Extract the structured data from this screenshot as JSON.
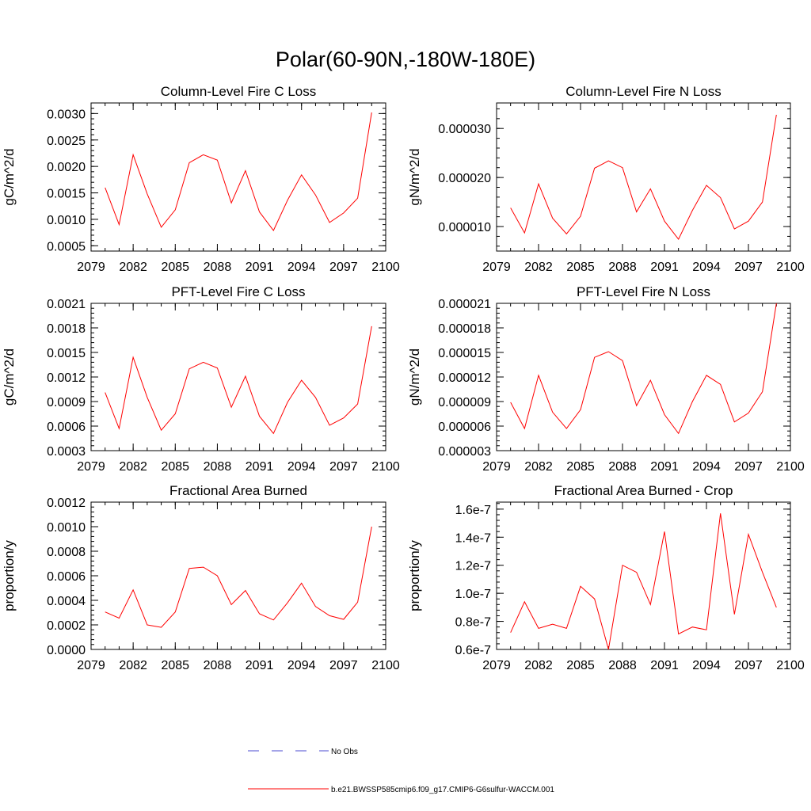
{
  "figure_title": "Polar(60-90N,-180W-180E)",
  "legend": [
    {
      "label": "No Obs",
      "color": "#4b4bd1",
      "style": "dashed"
    },
    {
      "label": "b.e21.BWSSP585cmip6.f09_g17.CMIP6-G6sulfur-WACCM.001",
      "color": "#ff0000",
      "style": "solid"
    }
  ],
  "xticks": [
    "2079",
    "2082",
    "2085",
    "2088",
    "2091",
    "2094",
    "2097",
    "2100"
  ],
  "chart_data": [
    {
      "type": "line",
      "title": "Column-Level Fire C Loss",
      "ylabel": "gC/m^2/d",
      "xlim": [
        2079,
        2100
      ],
      "ylim": [
        0.0004,
        0.0032
      ],
      "yticks": [
        0.0005,
        0.001,
        0.0015,
        0.002,
        0.0025,
        0.003
      ],
      "ytick_labels": [
        "0.0005",
        "0.0010",
        "0.0015",
        "0.0020",
        "0.0025",
        "0.0030"
      ],
      "x": [
        2080,
        2081,
        2082,
        2083,
        2084,
        2085,
        2086,
        2087,
        2088,
        2089,
        2090,
        2091,
        2092,
        2093,
        2094,
        2095,
        2096,
        2097,
        2098,
        2099
      ],
      "series": [
        {
          "values": [
            0.0016,
            0.0009,
            0.00222,
            0.00148,
            0.00085,
            0.00118,
            0.00207,
            0.00222,
            0.00212,
            0.00131,
            0.00192,
            0.00114,
            0.00079,
            0.00136,
            0.00184,
            0.00146,
            0.00094,
            0.00112,
            0.0014,
            0.00302
          ],
          "color": "#ff0000"
        }
      ]
    },
    {
      "type": "line",
      "title": "Column-Level Fire N Loss",
      "ylabel": "gN/m^2/d",
      "xlim": [
        2079,
        2100
      ],
      "ylim": [
        5e-06,
        3.52e-05
      ],
      "yticks": [
        1e-05,
        2e-05,
        3e-05
      ],
      "ytick_labels": [
        "0.000010",
        "0.000020",
        "0.000030"
      ],
      "x": [
        2080,
        2081,
        2082,
        2083,
        2084,
        2085,
        2086,
        2087,
        2088,
        2089,
        2090,
        2091,
        2092,
        2093,
        2094,
        2095,
        2096,
        2097,
        2098,
        2099
      ],
      "series": [
        {
          "values": [
            1.38e-05,
            8.7e-06,
            1.87e-05,
            1.17e-05,
            8.5e-06,
            1.21e-05,
            2.19e-05,
            2.34e-05,
            2.2e-05,
            1.3e-05,
            1.77e-05,
            1.11e-05,
            7.4e-06,
            1.33e-05,
            1.84e-05,
            1.59e-05,
            9.5e-06,
            1.11e-05,
            1.5e-05,
            3.28e-05
          ],
          "color": "#ff0000"
        }
      ]
    },
    {
      "type": "line",
      "title": "PFT-Level Fire C Loss",
      "ylabel": "gC/m^2/d",
      "xlim": [
        2079,
        2100
      ],
      "ylim": [
        0.0003,
        0.0021
      ],
      "yticks": [
        0.0003,
        0.0006,
        0.0009,
        0.0012,
        0.0015,
        0.0018,
        0.0021
      ],
      "ytick_labels": [
        "0.0003",
        "0.0006",
        "0.0009",
        "0.0012",
        "0.0015",
        "0.0018",
        "0.0021"
      ],
      "x": [
        2080,
        2081,
        2082,
        2083,
        2084,
        2085,
        2086,
        2087,
        2088,
        2089,
        2090,
        2091,
        2092,
        2093,
        2094,
        2095,
        2096,
        2097,
        2098,
        2099
      ],
      "series": [
        {
          "values": [
            0.00101,
            0.00057,
            0.00144,
            0.00095,
            0.00055,
            0.00075,
            0.0013,
            0.00138,
            0.00131,
            0.00083,
            0.00121,
            0.00072,
            0.00051,
            0.00089,
            0.00116,
            0.00095,
            0.00061,
            0.0007,
            0.00087,
            0.00182
          ],
          "color": "#ff0000"
        }
      ]
    },
    {
      "type": "line",
      "title": "PFT-Level Fire N Loss",
      "ylabel": "gN/m^2/d",
      "xlim": [
        2079,
        2100
      ],
      "ylim": [
        3e-06,
        2.1e-05
      ],
      "yticks": [
        3e-06,
        6e-06,
        9e-06,
        1.2e-05,
        1.5e-05,
        1.8e-05,
        2.1e-05
      ],
      "ytick_labels": [
        "0.000003",
        "0.000006",
        "0.000009",
        "0.000012",
        "0.000015",
        "0.000018",
        "0.000021"
      ],
      "x": [
        2080,
        2081,
        2082,
        2083,
        2084,
        2085,
        2086,
        2087,
        2088,
        2089,
        2090,
        2091,
        2092,
        2093,
        2094,
        2095,
        2096,
        2097,
        2098,
        2099
      ],
      "series": [
        {
          "values": [
            8.9e-06,
            5.7e-06,
            1.22e-05,
            7.7e-06,
            5.7e-06,
            8e-06,
            1.44e-05,
            1.51e-05,
            1.4e-05,
            8.5e-06,
            1.16e-05,
            7.4e-06,
            5.1e-06,
            9e-06,
            1.22e-05,
            1.11e-05,
            6.5e-06,
            7.6e-06,
            1.02e-05,
            2.1e-05
          ],
          "color": "#ff0000"
        }
      ]
    },
    {
      "type": "line",
      "title": "Fractional Area Burned",
      "ylabel": "proportion/y",
      "xlim": [
        2079,
        2100
      ],
      "ylim": [
        0.0,
        0.0012
      ],
      "yticks": [
        0.0,
        0.0002,
        0.0004,
        0.0006,
        0.0008,
        0.001,
        0.0012
      ],
      "ytick_labels": [
        "0.0000",
        "0.0002",
        "0.0004",
        "0.0006",
        "0.0008",
        "0.0010",
        "0.0012"
      ],
      "x": [
        2080,
        2081,
        2082,
        2083,
        2084,
        2085,
        2086,
        2087,
        2088,
        2089,
        2090,
        2091,
        2092,
        2093,
        2094,
        2095,
        2096,
        2097,
        2098,
        2099
      ],
      "series": [
        {
          "values": [
            0.000305,
            0.000255,
            0.000485,
            0.0002,
            0.00018,
            0.000305,
            0.00066,
            0.00067,
            0.0006,
            0.000365,
            0.00048,
            0.00029,
            0.00024,
            0.00038,
            0.00054,
            0.00035,
            0.000275,
            0.000245,
            0.000385,
            0.001
          ],
          "color": "#ff0000"
        }
      ]
    },
    {
      "type": "line",
      "title": "Fractional Area Burned - Crop",
      "ylabel": "proportion/y",
      "xlim": [
        2079,
        2100
      ],
      "ylim": [
        6e-08,
        1.65e-07
      ],
      "yticks": [
        6e-08,
        8e-08,
        1e-07,
        1.2e-07,
        1.4e-07,
        1.6e-07
      ],
      "ytick_labels": [
        "0.6e-7",
        "0.8e-7",
        "1.0e-7",
        "1.2e-7",
        "1.4e-7",
        "1.6e-7"
      ],
      "x": [
        2080,
        2081,
        2082,
        2083,
        2084,
        2085,
        2086,
        2087,
        2088,
        2089,
        2090,
        2091,
        2092,
        2093,
        2094,
        2095,
        2096,
        2097,
        2098,
        2099
      ],
      "series": [
        {
          "values": [
            7.2e-08,
            9.4e-08,
            7.5e-08,
            7.8e-08,
            7.5e-08,
            1.05e-07,
            9.6e-08,
            6e-08,
            1.2e-07,
            1.15e-07,
            9.2e-08,
            1.44e-07,
            7.1e-08,
            7.6e-08,
            7.4e-08,
            1.57e-07,
            8.5e-08,
            1.42e-07,
            1.15e-07,
            9e-08
          ],
          "color": "#ff0000"
        }
      ]
    }
  ]
}
